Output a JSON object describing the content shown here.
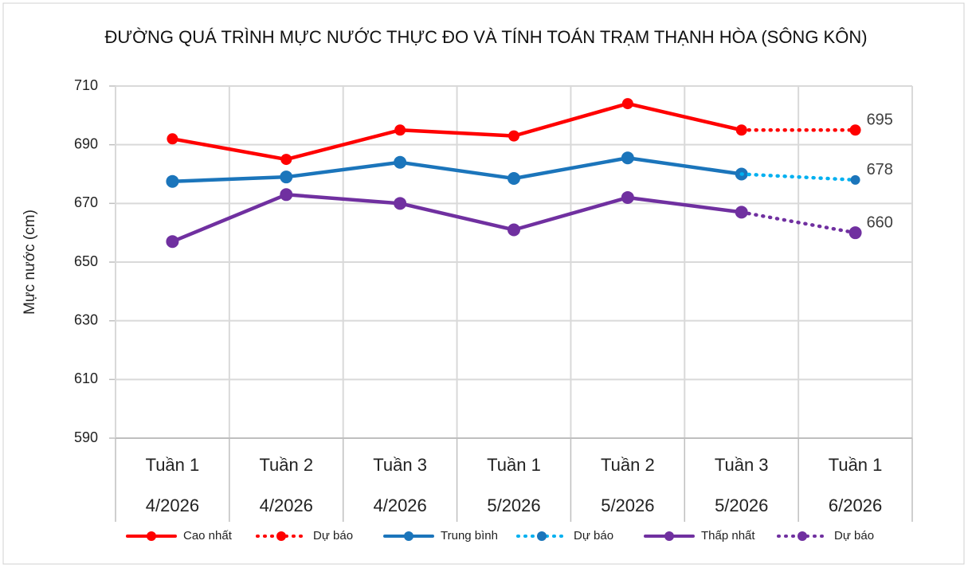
{
  "chart_data": {
    "type": "line",
    "title": "ĐƯỜNG QUÁ TRÌNH MỰC NƯỚC THỰC ĐO VÀ TÍNH TOÁN TRẠM THẠNH HÒA (SÔNG KÔN)",
    "y_label": "Mực nước (cm)",
    "categories": [
      [
        "Tuần 1",
        "4/2026"
      ],
      [
        "Tuần 2",
        "4/2026"
      ],
      [
        "Tuần 3",
        "4/2026"
      ],
      [
        "Tuần 1",
        "5/2026"
      ],
      [
        "Tuần 2",
        "5/2026"
      ],
      [
        "Tuần 3",
        "5/2026"
      ],
      [
        "Tuần 1",
        "6/2026"
      ]
    ],
    "series": [
      {
        "name": "Cao nhất",
        "color": "#ff0000",
        "style": "solid",
        "values": [
          692,
          685,
          695,
          693,
          704,
          695,
          null
        ]
      },
      {
        "name": "Dự báo",
        "color": "#ff0000",
        "style": "dotted",
        "last_label": true,
        "values": [
          null,
          null,
          null,
          null,
          null,
          695,
          695
        ]
      },
      {
        "name": "Trung bình",
        "color": "#1b75bb",
        "style": "solid",
        "values": [
          677.5,
          679,
          684,
          678.5,
          685.5,
          680,
          null
        ]
      },
      {
        "name": "Dự báo",
        "color": "#00b0f0",
        "style": "dotted",
        "last_label": true,
        "values": [
          null,
          null,
          null,
          null,
          null,
          680,
          678
        ]
      },
      {
        "name": "Thấp nhất",
        "color": "#7030a0",
        "style": "solid",
        "values": [
          657,
          673,
          670,
          661,
          672,
          667,
          null
        ]
      },
      {
        "name": "Dự báo",
        "color": "#7030a0",
        "style": "dotted",
        "last_label": true,
        "values": [
          null,
          null,
          null,
          null,
          null,
          667,
          660
        ]
      }
    ],
    "ylim": [
      590,
      710
    ],
    "yticks": [
      590,
      610,
      630,
      650,
      670,
      690,
      710
    ],
    "grid": true,
    "legend": "bottom"
  }
}
